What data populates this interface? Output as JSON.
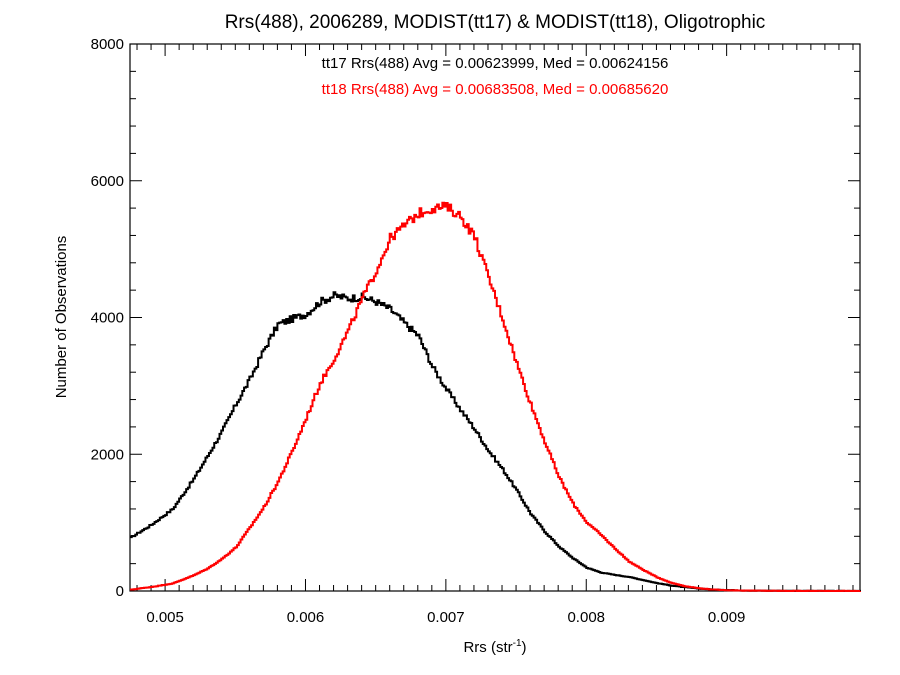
{
  "chart_data": {
    "type": "line",
    "step": true,
    "title": "Rrs(488), 2006289, MODIST(tt17) & MODIST(tt18), Oligotrophic",
    "xlabel_main": "Rrs (str",
    "xlabel_sup": "-1",
    "xlabel_close": ")",
    "ylabel": "Number of Observations",
    "xlim": [
      0.00475,
      0.00995
    ],
    "ylim": [
      0,
      8000
    ],
    "xticks": [
      0.005,
      0.006,
      0.007,
      0.008,
      0.009
    ],
    "xtick_labels": [
      "0.005",
      "0.006",
      "0.007",
      "0.008",
      "0.009"
    ],
    "yticks": [
      0,
      2000,
      4000,
      6000,
      8000
    ],
    "ytick_labels": [
      "0",
      "2000",
      "4000",
      "6000",
      "8000"
    ],
    "grid": false,
    "annotations": [
      {
        "text": "tt17 Rrs(488) Avg = 0.00623999, Med = 0.00624156",
        "color": "#000000"
      },
      {
        "text": "tt18 Rrs(488) Avg = 0.00683508, Med = 0.00685620",
        "color": "#ff0000"
      }
    ],
    "series": [
      {
        "color": "#000000",
        "x": [
          0.00475,
          0.0049,
          0.00505,
          0.0052,
          0.0053,
          0.0054,
          0.0055,
          0.0056,
          0.0057,
          0.0058,
          0.0059,
          0.006,
          0.0061,
          0.0062,
          0.0063,
          0.0064,
          0.0065,
          0.0066,
          0.0067,
          0.0068,
          0.0069,
          0.007,
          0.0071,
          0.0072,
          0.0073,
          0.0074,
          0.0075,
          0.0076,
          0.0077,
          0.0078,
          0.0079,
          0.008,
          0.0081,
          0.0082,
          0.0083,
          0.0084,
          0.0085,
          0.0086,
          0.0087,
          0.0088,
          0.0089,
          0.009,
          0.0091,
          0.0092,
          0.0094,
          0.0096,
          0.0098,
          0.00995
        ],
        "y": [
          780,
          970,
          1200,
          1640,
          1980,
          2330,
          2730,
          3100,
          3530,
          3900,
          3980,
          4050,
          4230,
          4320,
          4280,
          4300,
          4230,
          4120,
          3920,
          3730,
          3280,
          2950,
          2650,
          2370,
          2050,
          1780,
          1470,
          1130,
          870,
          650,
          480,
          340,
          270,
          235,
          205,
          160,
          115,
          80,
          55,
          35,
          22,
          14,
          8,
          5,
          3,
          2,
          1,
          1
        ]
      },
      {
        "color": "#ff0000",
        "x": [
          0.00475,
          0.0049,
          0.00505,
          0.0052,
          0.0053,
          0.0054,
          0.0055,
          0.0056,
          0.0057,
          0.0058,
          0.0059,
          0.006,
          0.0061,
          0.0062,
          0.0063,
          0.0064,
          0.0065,
          0.0066,
          0.0067,
          0.0068,
          0.0069,
          0.007,
          0.0071,
          0.0072,
          0.0073,
          0.0074,
          0.0075,
          0.0076,
          0.0077,
          0.0078,
          0.0079,
          0.008,
          0.0081,
          0.0082,
          0.0083,
          0.0084,
          0.0085,
          0.0086,
          0.0087,
          0.0088,
          0.0089,
          0.009,
          0.0091,
          0.0092,
          0.0094,
          0.0096,
          0.0098,
          0.00995
        ],
        "y": [
          20,
          60,
          110,
          230,
          330,
          470,
          640,
          930,
          1230,
          1600,
          2040,
          2530,
          3040,
          3400,
          3810,
          4280,
          4690,
          5160,
          5350,
          5520,
          5600,
          5620,
          5480,
          5180,
          4580,
          3980,
          3330,
          2730,
          2180,
          1670,
          1280,
          1000,
          820,
          620,
          430,
          310,
          200,
          120,
          70,
          40,
          20,
          12,
          7,
          4,
          2,
          1,
          1,
          0
        ]
      }
    ]
  }
}
